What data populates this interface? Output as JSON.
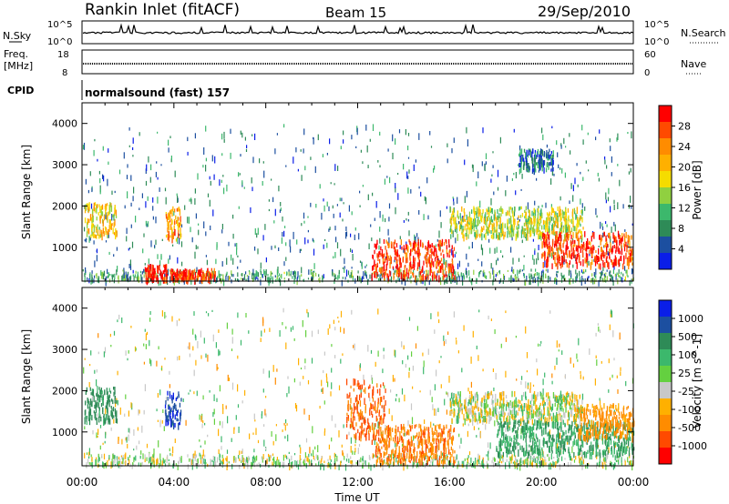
{
  "header": {
    "title": "Rankin Inlet (fitACF)",
    "beam": "Beam 15",
    "date": "29/Sep/2010"
  },
  "panels": {
    "nsky": {
      "label": "N.Sky",
      "right_label": "N.Search",
      "left_ticks": [
        "10^5",
        "10^0"
      ],
      "right_ticks": [
        "10^5",
        "10^0"
      ]
    },
    "freq": {
      "label": "Freq.",
      "unit": "[MHz]",
      "right_label": "Nave",
      "left_ticks": [
        "18",
        "8"
      ],
      "right_ticks": [
        "60",
        "0"
      ]
    },
    "cpid": {
      "label": "CPID",
      "value": "normalsound (fast) 157"
    }
  },
  "power_panel": {
    "ylabel": "Slant Range [km]",
    "colorbar_label": "Power [dB]",
    "colorbar_ticks": [
      "28",
      "24",
      "20",
      "16",
      "12",
      "8",
      "4"
    ],
    "colorbar_colors": [
      "#ff0000",
      "#ff4a00",
      "#ff8c00",
      "#ffb000",
      "#f5dc00",
      "#90d040",
      "#3cb86c",
      "#2e8b57",
      "#1c4fa0",
      "#0a1ee8"
    ]
  },
  "velocity_panel": {
    "ylabel": "Slant Range [km]",
    "colorbar_label": "Velocity [m s^-1]",
    "colorbar_ticks": [
      "1000",
      "500",
      "100",
      "25",
      "-25",
      "-100",
      "-500",
      "-1000"
    ],
    "colorbar_colors": [
      "#0a1ee8",
      "#1c4fa0",
      "#2e8b57",
      "#3cb86c",
      "#64d040",
      "#c8c8c8",
      "#ffb000",
      "#ff8c00",
      "#ff4a00",
      "#ff0000"
    ]
  },
  "chart_data": [
    {
      "type": "heatmap",
      "title": "Power",
      "ylabel": "Slant Range [km]",
      "xlabel": "Time UT",
      "x_ticks": [
        "00:00",
        "04:00",
        "08:00",
        "12:00",
        "16:00",
        "20:00",
        "00:00"
      ],
      "y_ticks": [
        1000,
        2000,
        3000,
        4000
      ],
      "xlim_hours": [
        0,
        24
      ],
      "ylim_km": [
        180,
        4500
      ],
      "value_label": "Power [dB]",
      "value_ticks": [
        4,
        8,
        12,
        16,
        20,
        24,
        28
      ],
      "blobs": [
        {
          "t0": 0.1,
          "t1": 1.5,
          "r0": 1300,
          "r1": 2100,
          "v": 18
        },
        {
          "t0": 2.7,
          "t1": 3.7,
          "r0": 200,
          "r1": 600,
          "v": 28
        },
        {
          "t0": 3.8,
          "t1": 5.8,
          "r0": 200,
          "r1": 500,
          "v": 26
        },
        {
          "t0": 3.6,
          "t1": 4.3,
          "r0": 1200,
          "r1": 2000,
          "v": 22
        },
        {
          "t0": 12.6,
          "t1": 16.2,
          "r0": 300,
          "r1": 1200,
          "v": 26
        },
        {
          "t0": 16.0,
          "t1": 21.8,
          "r0": 1300,
          "r1": 2000,
          "v": 16
        },
        {
          "t0": 20.0,
          "t1": 24.0,
          "r0": 600,
          "r1": 1400,
          "v": 26
        },
        {
          "t0": 19.0,
          "t1": 20.5,
          "r0": 2900,
          "r1": 3400,
          "v": 8
        }
      ]
    },
    {
      "type": "heatmap",
      "title": "Velocity",
      "ylabel": "Slant Range [km]",
      "xlabel": "Time UT",
      "x_ticks": [
        "00:00",
        "04:00",
        "08:00",
        "12:00",
        "16:00",
        "20:00",
        "00:00"
      ],
      "y_ticks": [
        1000,
        2000,
        3000,
        4000
      ],
      "xlim_hours": [
        0,
        24
      ],
      "ylim_km": [
        180,
        4500
      ],
      "value_label": "Velocity [m s^-1]",
      "value_ticks": [
        -1000,
        -500,
        -100,
        -25,
        25,
        100,
        500,
        1000
      ],
      "blobs": [
        {
          "t0": 0.1,
          "t1": 1.5,
          "r0": 1300,
          "r1": 2100,
          "v": 300
        },
        {
          "t0": 3.6,
          "t1": 4.3,
          "r0": 1200,
          "r1": 2000,
          "v": 800
        },
        {
          "t0": 12.6,
          "t1": 16.2,
          "r0": 300,
          "r1": 1200,
          "v": -300
        },
        {
          "t0": 11.5,
          "t1": 13.2,
          "r0": 900,
          "r1": 2300,
          "v": -400
        },
        {
          "t0": 16.0,
          "t1": 21.8,
          "r0": 1300,
          "r1": 2000,
          "v": 0
        },
        {
          "t0": 18.0,
          "t1": 24.0,
          "r0": 500,
          "r1": 1300,
          "v": 200
        },
        {
          "t0": 21.5,
          "t1": 24.0,
          "r0": 900,
          "r1": 1700,
          "v": -200
        }
      ]
    }
  ]
}
